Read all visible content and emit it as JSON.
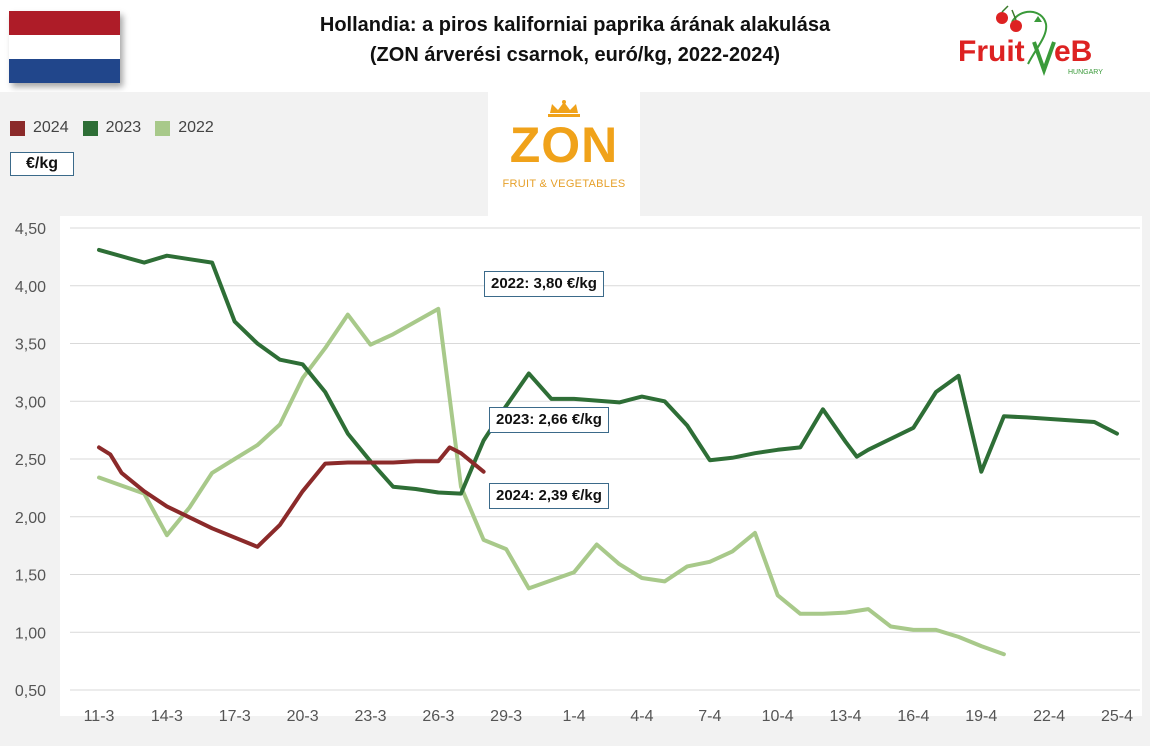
{
  "title_line1": "Hollandia: a piros kaliforniai paprika árának alakulása",
  "title_line2": "(ZON árverési csarnok, euró/kg, 2022-2024)",
  "flag_colors": [
    "#ae1c28",
    "#ffffff",
    "#21468b"
  ],
  "logo": {
    "brand_left": "Fruit",
    "brand_right": "eB",
    "brand_sub": "HUNGARY"
  },
  "zon_logo": {
    "word": "ZON",
    "sub": "FRUIT & VEGETABLES"
  },
  "unit_label": "€/kg",
  "callouts": [
    {
      "text": "2022: 3,80 €/kg"
    },
    {
      "text": "2023: 2,66 €/kg"
    },
    {
      "text": "2024: 2,39 €/kg"
    }
  ],
  "chart_data": {
    "type": "line",
    "ylabel": "€/kg",
    "ylim": [
      0.5,
      4.5
    ],
    "yticks": [
      "0,50",
      "1,00",
      "1,50",
      "2,00",
      "2,50",
      "3,00",
      "3,50",
      "4,00",
      "4,50"
    ],
    "ytick_values": [
      0.5,
      1.0,
      1.5,
      2.0,
      2.5,
      3.0,
      3.5,
      4.0,
      4.5
    ],
    "grid": true,
    "legend_position": "top-left",
    "categories": [
      "11-3",
      "12-3",
      "13-3",
      "14-3",
      "15-3",
      "16-3",
      "17-3",
      "18-3",
      "19-3",
      "20-3",
      "21-3",
      "22-3",
      "23-3",
      "24-3",
      "25-3",
      "26-3",
      "27-3",
      "28-3",
      "29-3",
      "30-3",
      "31-3",
      "1-4",
      "2-4",
      "3-4",
      "4-4",
      "5-4",
      "6-4",
      "7-4",
      "8-4",
      "9-4",
      "10-4",
      "11-4",
      "12-4",
      "13-4",
      "14-4",
      "15-4",
      "16-4",
      "17-4",
      "18-4",
      "19-4",
      "20-4",
      "21-4",
      "22-4",
      "23-4",
      "24-4",
      "25-4"
    ],
    "xtick_labels": [
      "11-3",
      "14-3",
      "17-3",
      "20-3",
      "23-3",
      "26-3",
      "29-3",
      "1-4",
      "4-4",
      "7-4",
      "10-4",
      "13-4",
      "16-4",
      "19-4",
      "22-4",
      "25-4"
    ],
    "series": [
      {
        "name": "2024",
        "color": "#8b2a2a",
        "points": [
          [
            "11-3",
            2.6
          ],
          [
            "11.5-3",
            2.54
          ],
          [
            "12-3",
            2.38
          ],
          [
            "13-3",
            2.22
          ],
          [
            "14-3",
            2.09
          ],
          [
            "16-3",
            1.9
          ],
          [
            "18-3",
            1.74
          ],
          [
            "19-3",
            1.93
          ],
          [
            "20-3",
            2.22
          ],
          [
            "21-3",
            2.46
          ],
          [
            "22-3",
            2.47
          ],
          [
            "24-3",
            2.47
          ],
          [
            "25-3",
            2.48
          ],
          [
            "26-3",
            2.48
          ],
          [
            "26.5-3",
            2.6
          ],
          [
            "27-3",
            2.55
          ],
          [
            "28-3",
            2.39
          ]
        ]
      },
      {
        "name": "2023",
        "color": "#2e6e36",
        "points": [
          [
            "11-3",
            4.31
          ],
          [
            "13-3",
            4.2
          ],
          [
            "14-3",
            4.26
          ],
          [
            "15-3",
            4.23
          ],
          [
            "16-3",
            4.2
          ],
          [
            "17-3",
            3.69
          ],
          [
            "18-3",
            3.5
          ],
          [
            "19-3",
            3.36
          ],
          [
            "20-3",
            3.32
          ],
          [
            "21-3",
            3.08
          ],
          [
            "22-3",
            2.72
          ],
          [
            "23-3",
            2.48
          ],
          [
            "24-3",
            2.26
          ],
          [
            "25-3",
            2.24
          ],
          [
            "26-3",
            2.21
          ],
          [
            "27-3",
            2.2
          ],
          [
            "28-3",
            2.66
          ],
          [
            "29-3",
            2.96
          ],
          [
            "30-3",
            3.24
          ],
          [
            "31-3",
            3.02
          ],
          [
            "1-4",
            3.02
          ],
          [
            "3-4",
            2.99
          ],
          [
            "4-4",
            3.04
          ],
          [
            "5-4",
            3.0
          ],
          [
            "6-4",
            2.79
          ],
          [
            "7-4",
            2.49
          ],
          [
            "8-4",
            2.51
          ],
          [
            "9-4",
            2.55
          ],
          [
            "10-4",
            2.58
          ],
          [
            "11-4",
            2.6
          ],
          [
            "12-4",
            2.93
          ],
          [
            "13-4",
            2.65
          ],
          [
            "13.5-4",
            2.52
          ],
          [
            "14-4",
            2.58
          ],
          [
            "16-4",
            2.77
          ],
          [
            "17-4",
            3.08
          ],
          [
            "18-4",
            3.22
          ],
          [
            "19-4",
            2.39
          ],
          [
            "20-4",
            2.87
          ],
          [
            "21-4",
            2.86
          ],
          [
            "24-4",
            2.82
          ],
          [
            "25-4",
            2.72
          ]
        ]
      },
      {
        "name": "2022",
        "color": "#a8c98a",
        "points": [
          [
            "11-3",
            2.34
          ],
          [
            "13-3",
            2.2
          ],
          [
            "14-3",
            1.84
          ],
          [
            "15-3",
            2.08
          ],
          [
            "16-3",
            2.38
          ],
          [
            "17-3",
            2.5
          ],
          [
            "18-3",
            2.62
          ],
          [
            "19-3",
            2.8
          ],
          [
            "20-3",
            3.2
          ],
          [
            "21-3",
            3.46
          ],
          [
            "22-3",
            3.75
          ],
          [
            "23-3",
            3.49
          ],
          [
            "24-3",
            3.58
          ],
          [
            "26-3",
            3.8
          ],
          [
            "27-3",
            2.26
          ],
          [
            "28-3",
            1.8
          ],
          [
            "29-3",
            1.72
          ],
          [
            "30-3",
            1.38
          ],
          [
            "1-4",
            1.52
          ],
          [
            "2-4",
            1.76
          ],
          [
            "3-4",
            1.59
          ],
          [
            "4-4",
            1.47
          ],
          [
            "5-4",
            1.44
          ],
          [
            "6-4",
            1.57
          ],
          [
            "7-4",
            1.61
          ],
          [
            "8-4",
            1.7
          ],
          [
            "9-4",
            1.86
          ],
          [
            "10-4",
            1.32
          ],
          [
            "11-4",
            1.16
          ],
          [
            "12-4",
            1.16
          ],
          [
            "13-4",
            1.17
          ],
          [
            "14-4",
            1.2
          ],
          [
            "15-4",
            1.05
          ],
          [
            "16-4",
            1.02
          ],
          [
            "17-4",
            1.02
          ],
          [
            "18-4",
            0.96
          ],
          [
            "19-4",
            0.88
          ],
          [
            "20-4",
            0.81
          ]
        ]
      }
    ]
  }
}
